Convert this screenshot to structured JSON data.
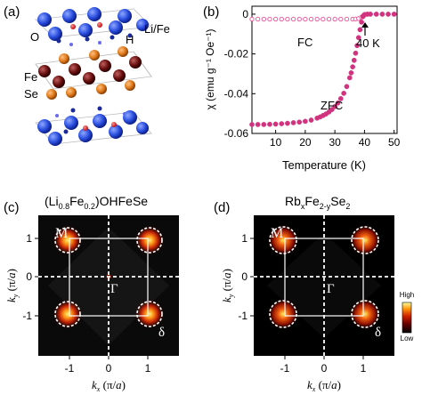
{
  "panels": {
    "a": {
      "label": "(a)",
      "atom_labels": {
        "O": "O",
        "H": "H",
        "LiFe": "Li/Fe",
        "Fe": "Fe",
        "Se": "Se"
      },
      "colors": {
        "LiFe": "#2b4fe0",
        "O": "#6a6af0",
        "H": "#1a2a9a",
        "Fe": "#6a1010",
        "Se": "#e07a1a"
      }
    },
    "b": {
      "label": "(b)",
      "annotations": {
        "fc": "FC",
        "zfc": "ZFC",
        "transition": "40 K"
      }
    },
    "c": {
      "label": "(c)",
      "title_parts": [
        "(Li",
        "0.8",
        "Fe",
        "0.2",
        ")OHFeSe"
      ],
      "point_M": "M",
      "point_Gamma": "Γ",
      "point_delta": "δ",
      "xlabel_parts": [
        "k",
        "x",
        " (π/",
        "a",
        ")"
      ],
      "ylabel_parts": [
        "k",
        "y",
        " (π/",
        "a",
        ")"
      ],
      "xticks": [
        "-1",
        "0",
        "1"
      ],
      "yticks": [
        "1",
        "0",
        "-1"
      ]
    },
    "d": {
      "label": "(d)",
      "title_parts": [
        "Rb",
        "x",
        "Fe",
        "2-y",
        "Se",
        "2"
      ],
      "point_M": "M",
      "point_Gamma": "Γ",
      "point_delta": "δ",
      "xlabel_parts": [
        "k",
        "x",
        " (π/",
        "a",
        ")"
      ],
      "ylabel_parts": [
        "k",
        "y",
        " (π/",
        "a",
        ")"
      ],
      "xticks": [
        "-1",
        "0",
        "1"
      ],
      "yticks": [
        "1",
        "0",
        "-1"
      ],
      "colorbar": {
        "high": "High",
        "low": "Low"
      }
    }
  },
  "chart_data": {
    "type": "scatter",
    "xlabel": "Temperature (K)",
    "ylabel": "χ (emu g⁻¹ Oe⁻¹)",
    "xlim": [
      2,
      51
    ],
    "ylim": [
      -0.06,
      0.004
    ],
    "xticks": [
      10,
      20,
      30,
      40,
      50
    ],
    "yticks": [
      0,
      -0.02,
      -0.04,
      -0.06
    ],
    "ytick_labels": [
      "0",
      "-0.02",
      "-0.04",
      "-0.06"
    ],
    "grid": false,
    "series": [
      {
        "name": "FC",
        "color": "#e8509a",
        "marker": "open-circle",
        "x": [
          2,
          4,
          6,
          8,
          10,
          12,
          14,
          16,
          18,
          20,
          22,
          24,
          26,
          28,
          30,
          32,
          34,
          36,
          37,
          38,
          39,
          39.5,
          40,
          40.5,
          41,
          42,
          44,
          46,
          48,
          50
        ],
        "y": [
          -0.0025,
          -0.0025,
          -0.0025,
          -0.0025,
          -0.0025,
          -0.0025,
          -0.0025,
          -0.0025,
          -0.0025,
          -0.0025,
          -0.0025,
          -0.0025,
          -0.0025,
          -0.0025,
          -0.0025,
          -0.0025,
          -0.0025,
          -0.0025,
          -0.0024,
          -0.0022,
          -0.0015,
          -0.0008,
          -0.0003,
          -0.0001,
          0,
          0,
          0,
          0,
          0,
          0
        ]
      },
      {
        "name": "ZFC",
        "color": "#d2337f",
        "marker": "filled-circle",
        "x": [
          2,
          4,
          6,
          8,
          10,
          12,
          14,
          16,
          18,
          20,
          22,
          24,
          25,
          26,
          27,
          28,
          29,
          30,
          31,
          32,
          33,
          34,
          35,
          35.5,
          36,
          36.5,
          37,
          37.5,
          38,
          38.5,
          39,
          39.5,
          40,
          41,
          42,
          44,
          46,
          48,
          50
        ],
        "y": [
          -0.0555,
          -0.0555,
          -0.0555,
          -0.0554,
          -0.0553,
          -0.0551,
          -0.0549,
          -0.0546,
          -0.0543,
          -0.0539,
          -0.0533,
          -0.0523,
          -0.0517,
          -0.051,
          -0.0502,
          -0.0492,
          -0.048,
          -0.0465,
          -0.0447,
          -0.0425,
          -0.0398,
          -0.0364,
          -0.032,
          -0.0295,
          -0.0265,
          -0.0232,
          -0.0196,
          -0.0158,
          -0.0118,
          -0.0078,
          -0.004,
          -0.0012,
          -0.0002,
          0,
          0,
          0,
          0,
          0,
          0
        ]
      }
    ]
  }
}
